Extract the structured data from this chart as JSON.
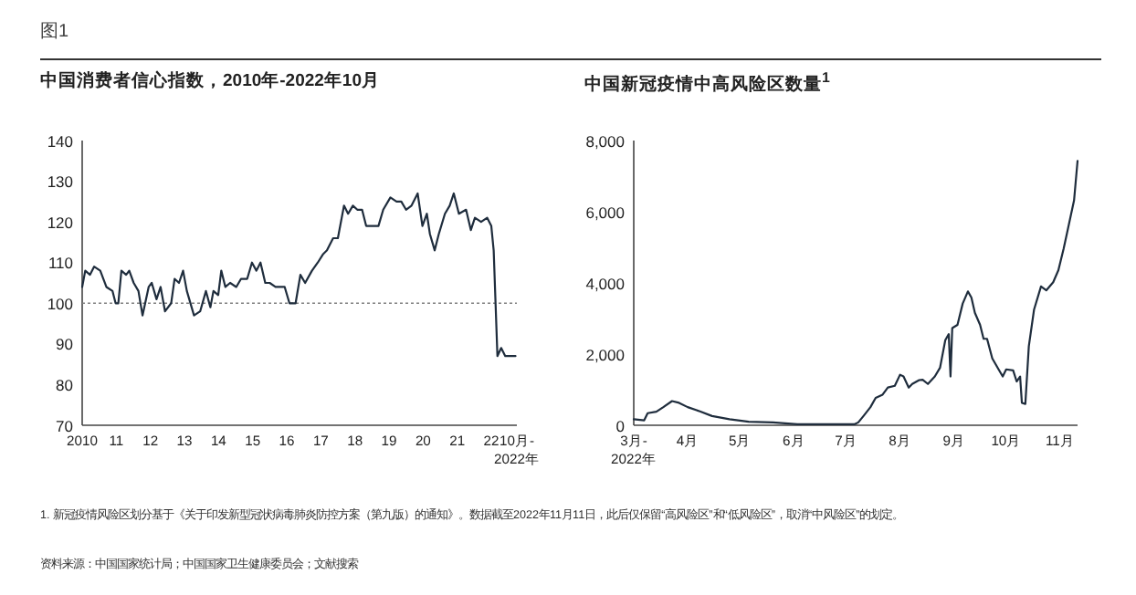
{
  "chart_data": [
    {
      "type": "line",
      "title": "中国消费者信心指数，2010年-2022年10月",
      "annotations": [
        "图1"
      ],
      "x": [
        2010.0,
        2010.09,
        2010.23,
        2010.35,
        2010.53,
        2010.71,
        2010.89,
        2010.98,
        2011.06,
        2011.15,
        2011.29,
        2011.38,
        2011.51,
        2011.65,
        2011.77,
        2011.95,
        2012.04,
        2012.18,
        2012.3,
        2012.43,
        2012.61,
        2012.71,
        2012.84,
        2012.96,
        2013.07,
        2013.28,
        2013.46,
        2013.63,
        2013.76,
        2013.85,
        2013.99,
        2014.08,
        2014.2,
        2014.34,
        2014.52,
        2014.66,
        2014.84,
        2014.98,
        2015.11,
        2015.23,
        2015.37,
        2015.5,
        2015.67,
        2015.94,
        2016.08,
        2016.26,
        2016.4,
        2016.54,
        2016.74,
        2016.91,
        2017.06,
        2017.18,
        2017.36,
        2017.5,
        2017.68,
        2017.8,
        2017.94,
        2018.07,
        2018.21,
        2018.33,
        2018.51,
        2018.69,
        2018.83,
        2019.04,
        2019.22,
        2019.36,
        2019.5,
        2019.66,
        2019.84,
        2019.98,
        2020.11,
        2020.2,
        2020.34,
        2020.46,
        2020.64,
        2020.78,
        2020.9,
        2021.05,
        2021.26,
        2021.4,
        2021.52,
        2021.7,
        2021.88,
        2022.0,
        2022.07,
        2022.18,
        2022.29,
        2022.41,
        2022.59,
        2022.71
      ],
      "values": [
        104,
        108,
        107,
        109,
        108,
        104,
        103,
        100,
        100,
        108,
        107,
        108,
        105,
        103,
        97,
        104,
        105,
        101,
        104,
        98,
        100,
        106,
        105,
        108,
        103,
        97,
        98,
        103,
        99,
        103,
        102,
        108,
        104,
        105,
        104,
        106,
        106,
        110,
        108,
        110,
        105,
        105,
        104,
        104,
        100,
        100,
        107,
        105,
        108,
        110,
        112,
        113,
        116,
        116,
        124,
        122,
        124,
        123,
        123,
        119,
        119,
        119,
        123,
        126,
        125,
        125,
        123,
        124,
        127,
        119,
        122,
        117,
        113,
        117,
        122,
        124,
        127,
        122,
        123,
        118,
        121,
        120,
        121,
        119,
        113,
        87,
        89,
        87,
        87,
        87
      ],
      "color": "#1f2d3d",
      "xlim": [
        2010,
        2022.75
      ],
      "xticks": [
        2010,
        {
          "value": 2011,
          "label": "11"
        },
        {
          "value": 2012,
          "label": "12"
        },
        {
          "value": 2013,
          "label": "13"
        },
        {
          "value": 2014,
          "label": "14"
        },
        {
          "value": 2015,
          "label": "15"
        },
        {
          "value": 2016,
          "label": "16"
        },
        {
          "value": 2017,
          "label": "17"
        },
        {
          "value": 2018,
          "label": "18"
        },
        {
          "value": 2019,
          "label": "19"
        },
        {
          "value": 2020,
          "label": "20"
        },
        {
          "value": 2021,
          "label": "21"
        },
        {
          "value": 2022,
          "label": "22"
        },
        {
          "value": 2022.75,
          "label": "10月-2022年"
        }
      ],
      "ylim": [
        70,
        140
      ],
      "yticks": [
        70,
        80,
        90,
        100,
        110,
        120,
        130,
        140
      ],
      "ref_lines": [
        {
          "axis": "y",
          "value": 100,
          "line_style": "dotted",
          "color": "#808080"
        }
      ],
      "grid": false
    },
    {
      "type": "line",
      "title": "中国新冠疫情中高风险区数量$^{1}$",
      "annotations": [
        "1. 新冠疫情风险区划分基于《关于印发新型冠状病毒肺炎防控方案（第九版）的通知》。数据截至2022年11月11日，此后仅保留“高风险区”和“低风险区”，取消“中风险区”的划定。",
        "资料来源：中国国家统计局；中国国家卫生健康委员会；文献搜索"
      ],
      "x": [
        "2022-03-01",
        "2022-03-07",
        "2022-03-09",
        "2022-03-14",
        "2022-03-18",
        "2022-03-23",
        "2022-03-27",
        "2022-04-01",
        "2022-04-08",
        "2022-04-15",
        "2022-04-25",
        "2022-05-06",
        "2022-05-20",
        "2022-06-03",
        "2022-06-17",
        "2022-06-27",
        "2022-07-06",
        "2022-07-08",
        "2022-07-11",
        "2022-07-15",
        "2022-07-18",
        "2022-07-22",
        "2022-07-25",
        "2022-07-29",
        "2022-08-01",
        "2022-08-03",
        "2022-08-06",
        "2022-08-08",
        "2022-08-12",
        "2022-08-14",
        "2022-08-17",
        "2022-08-21",
        "2022-08-24",
        "2022-08-27",
        "2022-08-29",
        "2022-08-30",
        "2022-08-31",
        "2022-09-03",
        "2022-09-06",
        "2022-09-09",
        "2022-09-11",
        "2022-09-13",
        "2022-09-16",
        "2022-09-18",
        "2022-09-20",
        "2022-09-23",
        "2022-09-27",
        "2022-09-29",
        "2022-10-01",
        "2022-10-05",
        "2022-10-07",
        "2022-10-09",
        "2022-10-10",
        "2022-10-12",
        "2022-10-14",
        "2022-10-17",
        "2022-10-21",
        "2022-10-24",
        "2022-10-28",
        "2022-10-31",
        "2022-11-03",
        "2022-11-06",
        "2022-11-09",
        "2022-11-11"
      ],
      "values": [
        170,
        140,
        340,
        380,
        510,
        680,
        630,
        510,
        390,
        260,
        170,
        100,
        80,
        30,
        30,
        30,
        30,
        80,
        260,
        510,
        770,
        860,
        1060,
        1110,
        1420,
        1370,
        1060,
        1160,
        1270,
        1280,
        1160,
        1370,
        1620,
        2390,
        2560,
        1370,
        2730,
        2820,
        3420,
        3760,
        3590,
        3160,
        2820,
        2430,
        2430,
        1880,
        1540,
        1370,
        1570,
        1540,
        1230,
        1370,
        630,
        600,
        2220,
        3250,
        3900,
        3790,
        4020,
        4360,
        4960,
        5640,
        6320,
        7430
      ],
      "color": "#1f2d3d",
      "xlim": [
        "2022-03-01",
        "2022-11-11"
      ],
      "xticks": [
        {
          "value": "2022-03-01",
          "label": "3月-2022年"
        },
        {
          "value": "2022-04-01",
          "label": "4月"
        },
        {
          "value": "2022-05-01",
          "label": "5月"
        },
        {
          "value": "2022-06-01",
          "label": "6月"
        },
        {
          "value": "2022-07-01",
          "label": "7月"
        },
        {
          "value": "2022-08-01",
          "label": "8月"
        },
        {
          "value": "2022-09-01",
          "label": "9月"
        },
        {
          "value": "2022-10-01",
          "label": "10月"
        },
        {
          "value": "2022-11-01",
          "label": "11月"
        }
      ],
      "ylim": [
        0,
        8000
      ],
      "yticks": [
        0,
        {
          "value": 2000,
          "label": "2,000"
        },
        {
          "value": 4000,
          "label": "4,000"
        },
        {
          "value": 6000,
          "label": "6,000"
        },
        {
          "value": 8000,
          "label": "8,000"
        }
      ],
      "grid": false
    }
  ]
}
